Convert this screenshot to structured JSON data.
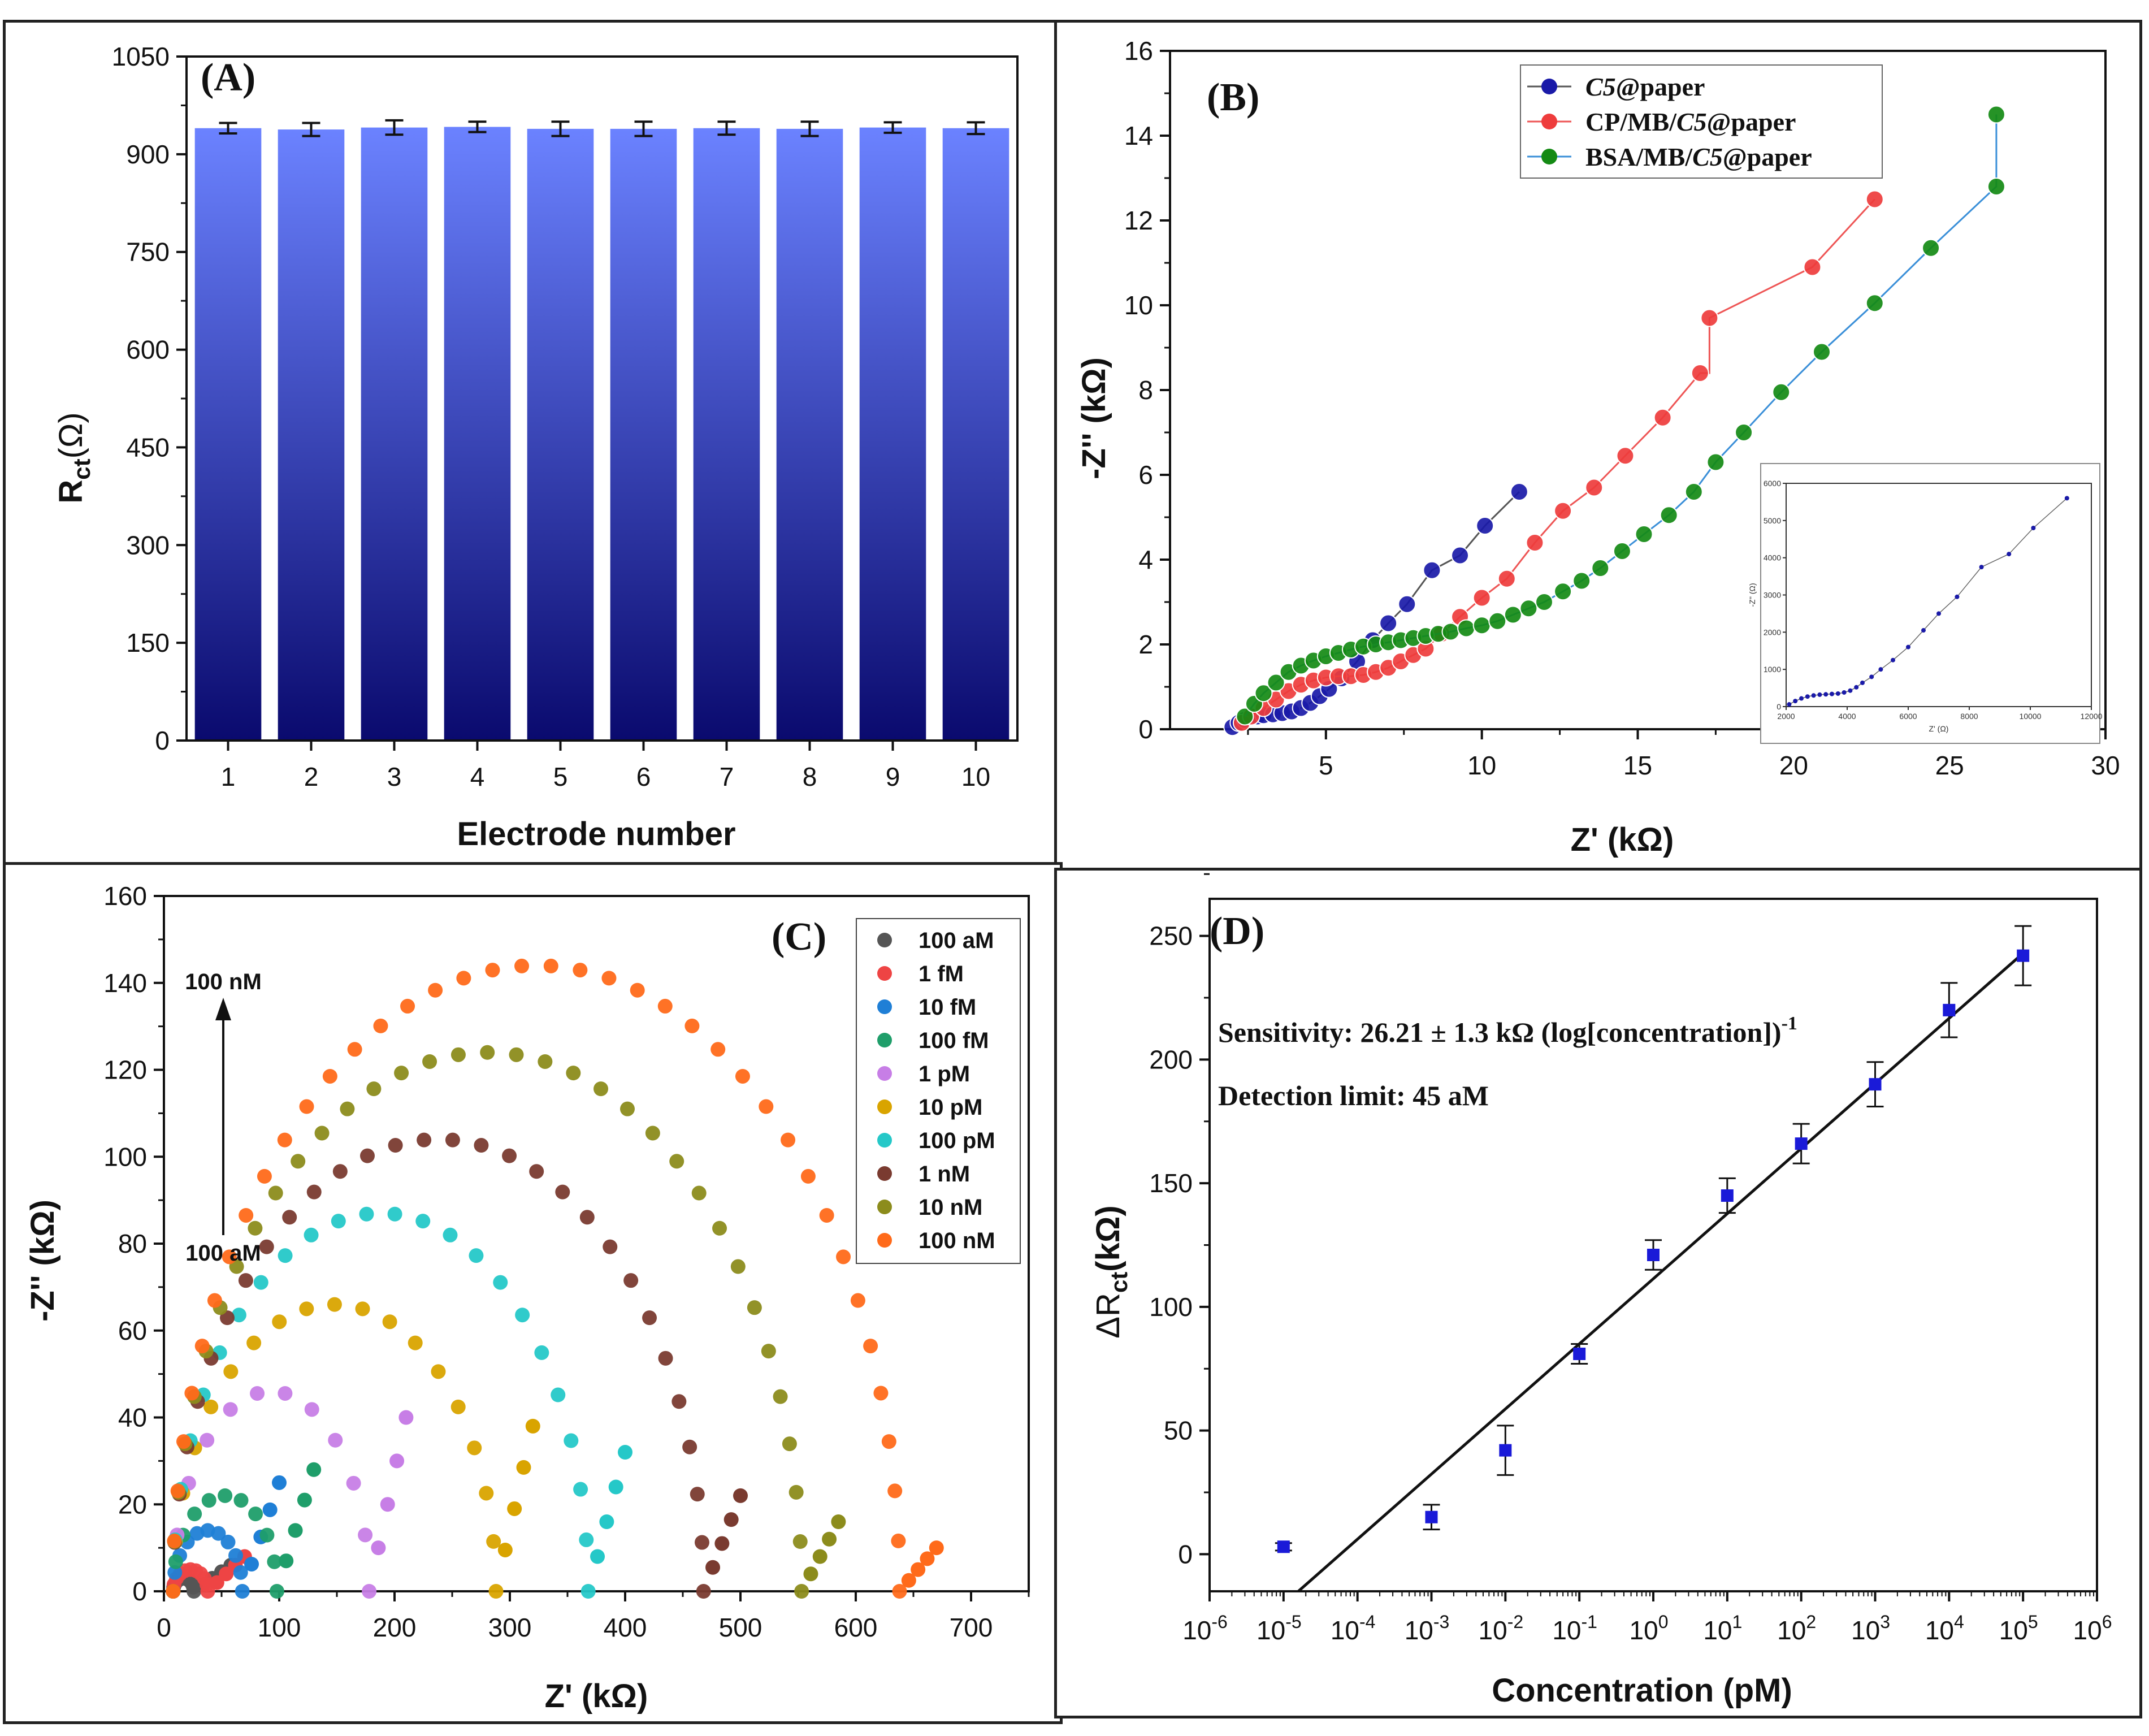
{
  "chart_data": [
    {
      "panel": "(A)",
      "type": "bar",
      "xlabel": "Electrode number",
      "ylabel": "R",
      "ylabel_sub": "ct",
      "ylabel_unit": "(Ω)",
      "ylim": [
        0,
        1050
      ],
      "yticks": [
        "0",
        "150",
        "300",
        "450",
        "600",
        "750",
        "900",
        "1050"
      ],
      "yticks_values": [
        0,
        150,
        300,
        450,
        600,
        750,
        900,
        1050
      ],
      "categories": [
        "1",
        "2",
        "3",
        "4",
        "5",
        "6",
        "7",
        "8",
        "9",
        "10"
      ],
      "values": [
        940,
        938,
        941,
        942,
        939,
        939,
        940,
        939,
        941,
        940
      ],
      "errors": [
        8,
        10,
        11,
        8,
        11,
        11,
        10,
        11,
        8,
        9
      ],
      "color_top": "#6b82ff",
      "color_bottom": "#0a0a6e"
    },
    {
      "panel": "(B)",
      "type": "line",
      "xlabel": "Z' (kΩ)",
      "ylabel": "-Z'' (kΩ)",
      "xlim": [
        0,
        30
      ],
      "ylim": [
        0,
        16
      ],
      "xticks": [
        "5",
        "10",
        "15",
        "20",
        "25",
        "30"
      ],
      "yticks": [
        "0",
        "2",
        "4",
        "6",
        "8",
        "10",
        "12",
        "14",
        "16"
      ],
      "legend": [
        "C5@paper",
        "CP/MB/C5@paper",
        "BSA/MB/C5@paper"
      ],
      "legend_parts": [
        {
          "italic": "C5",
          "rest": "@paper"
        },
        {
          "pre": "CP/MB/",
          "italic": "C5",
          "rest": "@paper"
        },
        {
          "pre": "BSA/MB/",
          "italic": "C5",
          "rest": "@paper"
        }
      ],
      "series": [
        {
          "name": "C5@paper",
          "color": "#1a1aa8",
          "line": "#555555",
          "x": [
            2.0,
            2.2,
            2.4,
            2.6,
            2.8,
            3.0,
            3.3,
            3.6,
            3.9,
            4.2,
            4.5,
            4.8,
            5.1,
            5.5,
            6.0,
            6.5,
            7.0,
            7.6,
            8.4,
            9.3,
            10.1,
            11.2
          ],
          "y": [
            0.05,
            0.15,
            0.22,
            0.28,
            0.3,
            0.33,
            0.35,
            0.38,
            0.42,
            0.5,
            0.62,
            0.78,
            0.95,
            1.2,
            1.6,
            2.1,
            2.5,
            2.95,
            3.75,
            4.1,
            4.8,
            5.6
          ]
        },
        {
          "name": "CP/MB/C5@paper",
          "color": "#ee3c3c",
          "line": "#ee5555",
          "x": [
            2.3,
            2.6,
            3.0,
            3.4,
            3.8,
            4.2,
            4.6,
            5.0,
            5.4,
            5.8,
            6.2,
            6.6,
            7.0,
            7.4,
            7.8,
            8.2,
            8.7,
            9.3,
            10.0,
            10.8,
            11.7,
            12.6,
            13.6,
            14.6,
            15.8,
            17.0,
            17.3,
            17.3,
            20.6,
            22.6
          ],
          "y": [
            0.15,
            0.3,
            0.5,
            0.7,
            0.9,
            1.05,
            1.15,
            1.22,
            1.25,
            1.25,
            1.28,
            1.35,
            1.45,
            1.6,
            1.75,
            1.9,
            2.25,
            2.65,
            3.1,
            3.55,
            4.4,
            5.15,
            5.7,
            6.45,
            7.35,
            8.4,
            8.4,
            9.7,
            10.9,
            12.5
          ],
          "points_x": [
            2.3,
            2.6,
            3.0,
            3.4,
            3.8,
            4.2,
            4.6,
            5.0,
            5.4,
            5.8,
            6.2,
            6.6,
            7.0,
            7.4,
            7.8,
            8.2,
            8.7,
            9.3,
            10.0,
            10.8,
            11.7,
            12.6,
            13.6,
            14.6,
            15.8,
            17.0,
            17.3,
            20.6,
            22.6
          ],
          "points_y": [
            0.15,
            0.3,
            0.5,
            0.7,
            0.9,
            1.05,
            1.15,
            1.22,
            1.25,
            1.25,
            1.28,
            1.35,
            1.45,
            1.6,
            1.75,
            1.9,
            2.25,
            2.65,
            3.1,
            3.55,
            4.4,
            5.15,
            5.7,
            6.45,
            7.35,
            8.4,
            9.7,
            10.9,
            12.5
          ]
        },
        {
          "name": "BSA/MB/C5@paper",
          "color": "#148a14",
          "line": "#3a8fd8",
          "x": [
            2.4,
            2.7,
            3.0,
            3.4,
            3.8,
            4.2,
            4.6,
            5.0,
            5.4,
            5.8,
            6.2,
            6.6,
            7.0,
            7.4,
            7.8,
            8.2,
            8.6,
            9.0,
            9.5,
            10.0,
            10.5,
            11.0,
            11.5,
            12.0,
            12.6,
            13.2,
            13.8,
            14.5,
            15.2,
            16.0,
            16.8,
            17.5,
            18.4,
            19.6,
            20.9,
            22.6,
            24.4,
            26.5
          ],
          "y": [
            0.3,
            0.6,
            0.85,
            1.1,
            1.35,
            1.5,
            1.62,
            1.72,
            1.8,
            1.88,
            1.95,
            2.0,
            2.05,
            2.1,
            2.15,
            2.2,
            2.25,
            2.3,
            2.38,
            2.45,
            2.55,
            2.7,
            2.85,
            3.0,
            3.25,
            3.5,
            3.8,
            4.2,
            4.6,
            5.05,
            5.6,
            6.3,
            7.0,
            7.95,
            8.9,
            10.05,
            11.35,
            12.8
          ],
          "extra_x": [
            26.5
          ],
          "extra_y": [
            14.5
          ]
        }
      ],
      "inset": {
        "xlabel": "Z' (Ω)",
        "ylabel": "-Z'' (Ω)",
        "xticks": [
          "2000",
          "4000",
          "6000",
          "8000",
          "10000",
          "12000"
        ],
        "yticks": [
          "0",
          "1000",
          "2000",
          "3000",
          "4000",
          "5000",
          "6000"
        ],
        "xlim": [
          2000,
          12000
        ],
        "ylim": [
          0,
          6000
        ],
        "x": [
          2100,
          2300,
          2500,
          2700,
          2900,
          3100,
          3300,
          3500,
          3700,
          3900,
          4100,
          4300,
          4500,
          4800,
          5100,
          5500,
          6000,
          6500,
          7000,
          7600,
          8400,
          9300,
          10100,
          11200
        ],
        "y": [
          60,
          150,
          220,
          270,
          300,
          320,
          330,
          340,
          350,
          380,
          430,
          520,
          640,
          800,
          1000,
          1250,
          1600,
          2050,
          2500,
          2950,
          3750,
          4100,
          4800,
          5600
        ]
      }
    },
    {
      "panel": "(C)",
      "type": "scatter",
      "xlabel": "Z' (kΩ)",
      "ylabel": "-Z'' (kΩ)",
      "xlim": [
        0,
        750
      ],
      "ylim": [
        0,
        160
      ],
      "xticks": [
        "0",
        "100",
        "200",
        "300",
        "400",
        "500",
        "600",
        "700"
      ],
      "yticks": [
        "0",
        "20",
        "40",
        "60",
        "80",
        "100",
        "120",
        "140",
        "160"
      ],
      "legend": [
        "100 aM",
        "1 fM",
        "10 fM",
        "100 fM",
        "1 pM",
        "10 pM",
        "100 pM",
        "1 nM",
        "10 nM",
        "100 nM"
      ],
      "colors": [
        "#555555",
        "#ee4444",
        "#1f7fd6",
        "#1f9e6a",
        "#c77ee6",
        "#d9a400",
        "#25c8c8",
        "#7a3b30",
        "#8c8c1c",
        "#ff6a1a"
      ],
      "annotation_top": "100 nM",
      "annotation_bottom": "100 aM",
      "semicircles": [
        {
          "name": "100 aM",
          "R": 18,
          "H": 3,
          "tail": 6
        },
        {
          "name": "1 fM",
          "R": 30,
          "H": 5,
          "tail": 8
        },
        {
          "name": "10 fM",
          "R": 60,
          "H": 14,
          "tail": 25
        },
        {
          "name": "100 fM",
          "R": 90,
          "H": 22,
          "tail": 28
        },
        {
          "name": "1 pM",
          "R": 170,
          "H": 46,
          "tail": 40
        },
        {
          "name": "10 pM",
          "R": 280,
          "H": 66,
          "tail": 38
        },
        {
          "name": "100 pM",
          "R": 360,
          "H": 87,
          "tail": 32
        },
        {
          "name": "1 nM",
          "R": 460,
          "H": 104,
          "tail": 22
        },
        {
          "name": "10 nM",
          "R": 545,
          "H": 124,
          "tail": 16
        },
        {
          "name": "100 nM",
          "R": 630,
          "H": 144,
          "tail": 10
        }
      ]
    },
    {
      "panel": "(D)",
      "type": "scatter",
      "xlabel": "Concentration (pM)",
      "ylabel": "ΔR",
      "ylabel_sub": "ct",
      "ylabel_unit": "(kΩ)",
      "xlog": true,
      "xlim_exp": [
        -6,
        6
      ],
      "xticks_exp": [
        "-6",
        "-5",
        "-4",
        "-3",
        "-2",
        "-1",
        "0",
        "1",
        "2",
        "3",
        "4",
        "5",
        "6"
      ],
      "ylim": [
        -15,
        265
      ],
      "yticks": [
        "0",
        "50",
        "100",
        "150",
        "200",
        "250"
      ],
      "x_exp": [
        -5,
        -3,
        -2,
        -1,
        0,
        1,
        2,
        3,
        4,
        5
      ],
      "y": [
        3,
        15,
        42,
        81,
        121,
        145,
        166,
        190,
        220,
        242
      ],
      "err": [
        1.5,
        5,
        10,
        4,
        6,
        7,
        8,
        9,
        11,
        12
      ],
      "fit": {
        "x_exp": [
          -4.8,
          5
        ],
        "y": [
          -15,
          243
        ]
      },
      "sensitivity": "Sensitivity: 26.21 ± 1.3 kΩ (log[concentration])",
      "sensitivity_sup": "-1",
      "detection": "Detection limit: 45 aM",
      "marker_color": "#1a1ad8"
    }
  ]
}
